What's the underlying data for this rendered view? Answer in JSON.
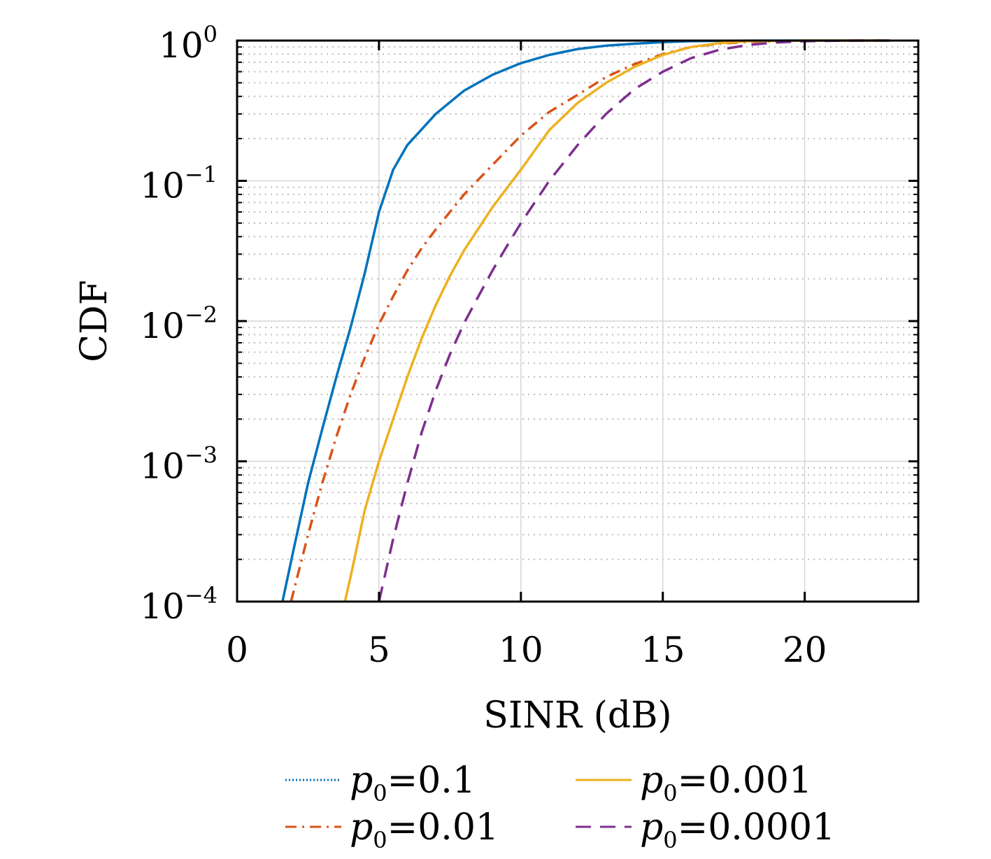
{
  "chart_data": {
    "type": "line",
    "xlabel": "SINR (dB)",
    "ylabel": "CDF",
    "xscale": "linear",
    "yscale": "log",
    "xlim": [
      0,
      24
    ],
    "ylim": [
      0.0001,
      1
    ],
    "xticks": [
      0,
      5,
      10,
      15,
      20
    ],
    "xtick_labels": [
      "0",
      "5",
      "10",
      "15",
      "20"
    ],
    "yticks": [
      0.0001,
      0.001,
      0.01,
      0.1,
      1
    ],
    "ytick_labels": [
      {
        "base": "10",
        "exp": "−4"
      },
      {
        "base": "10",
        "exp": "−3"
      },
      {
        "base": "10",
        "exp": "−2"
      },
      {
        "base": "10",
        "exp": "−1"
      },
      {
        "base": "10",
        "exp": "0"
      }
    ],
    "grid": true,
    "minor_grid": true,
    "legend_position": "bottom",
    "legend_columns": 2,
    "series": [
      {
        "name": "p0=0.1",
        "legend_var": "p",
        "legend_sub": "0",
        "legend_value": "=0.1",
        "color": "#0072BD",
        "style": "solid",
        "legend_style": "dotted",
        "x": [
          1.6,
          2.0,
          2.5,
          3.0,
          3.5,
          4.0,
          4.5,
          5.0,
          5.5,
          6.0,
          7.0,
          8.0,
          9.0,
          10.0,
          11.0,
          12.0,
          13.0,
          14.0,
          15.0,
          16.0,
          17.0,
          18.0,
          20.0,
          23.0
        ],
        "y": [
          0.0001,
          0.00024,
          0.0007,
          0.0017,
          0.004,
          0.009,
          0.022,
          0.06,
          0.12,
          0.18,
          0.3,
          0.44,
          0.57,
          0.69,
          0.79,
          0.87,
          0.92,
          0.95,
          0.975,
          0.99,
          0.995,
          0.999,
          1.0,
          1.0
        ]
      },
      {
        "name": "p0=0.01",
        "legend_var": "p",
        "legend_sub": "0",
        "legend_value": "=0.01",
        "color": "#D95319",
        "style": "dashdot",
        "legend_style": "dashdot",
        "x": [
          1.9,
          2.5,
          3.0,
          3.5,
          4.0,
          4.5,
          5.0,
          5.5,
          6.0,
          6.5,
          7.0,
          8.0,
          9.0,
          10.0,
          11.0,
          12.0,
          13.0,
          14.0,
          15.0,
          16.0,
          17.0,
          18.0,
          20.0,
          23.0
        ],
        "y": [
          0.0001,
          0.0003,
          0.0007,
          0.0015,
          0.003,
          0.0055,
          0.0095,
          0.015,
          0.023,
          0.033,
          0.045,
          0.08,
          0.13,
          0.21,
          0.31,
          0.41,
          0.55,
          0.68,
          0.8,
          0.9,
          0.95,
          0.98,
          0.999,
          1.0
        ]
      },
      {
        "name": "p0=0.001",
        "legend_var": "p",
        "legend_sub": "0",
        "legend_value": "=0.001",
        "color": "#EDB120",
        "style": "solid",
        "legend_style": "solid",
        "x": [
          3.8,
          4.0,
          4.5,
          5.0,
          5.5,
          6.0,
          6.5,
          7.0,
          7.5,
          8.0,
          9.0,
          10.0,
          11.0,
          12.0,
          13.0,
          14.0,
          15.0,
          16.0,
          17.0,
          18.0,
          20.0,
          23.0
        ],
        "y": [
          0.0001,
          0.00015,
          0.00045,
          0.001,
          0.002,
          0.004,
          0.0075,
          0.013,
          0.021,
          0.032,
          0.065,
          0.12,
          0.23,
          0.36,
          0.5,
          0.65,
          0.79,
          0.9,
          0.96,
          0.99,
          1.0,
          1.0
        ]
      },
      {
        "name": "p0=0.0001",
        "legend_var": "p",
        "legend_sub": "0",
        "legend_value": "=0.0001",
        "color": "#7E2F8E",
        "style": "dashed",
        "legend_style": "dashed",
        "x": [
          5.0,
          5.5,
          6.0,
          6.5,
          7.0,
          7.5,
          8.0,
          8.5,
          9.0,
          9.5,
          10.0,
          11.0,
          12.0,
          13.0,
          14.0,
          15.0,
          16.0,
          17.0,
          18.0,
          19.0,
          20.0,
          21.0,
          22.0,
          23.0
        ],
        "y": [
          0.0001,
          0.00028,
          0.0007,
          0.0016,
          0.0032,
          0.0058,
          0.0097,
          0.015,
          0.023,
          0.034,
          0.05,
          0.1,
          0.18,
          0.3,
          0.45,
          0.6,
          0.75,
          0.86,
          0.93,
          0.97,
          0.99,
          0.997,
          1.0,
          1.0
        ]
      }
    ]
  }
}
